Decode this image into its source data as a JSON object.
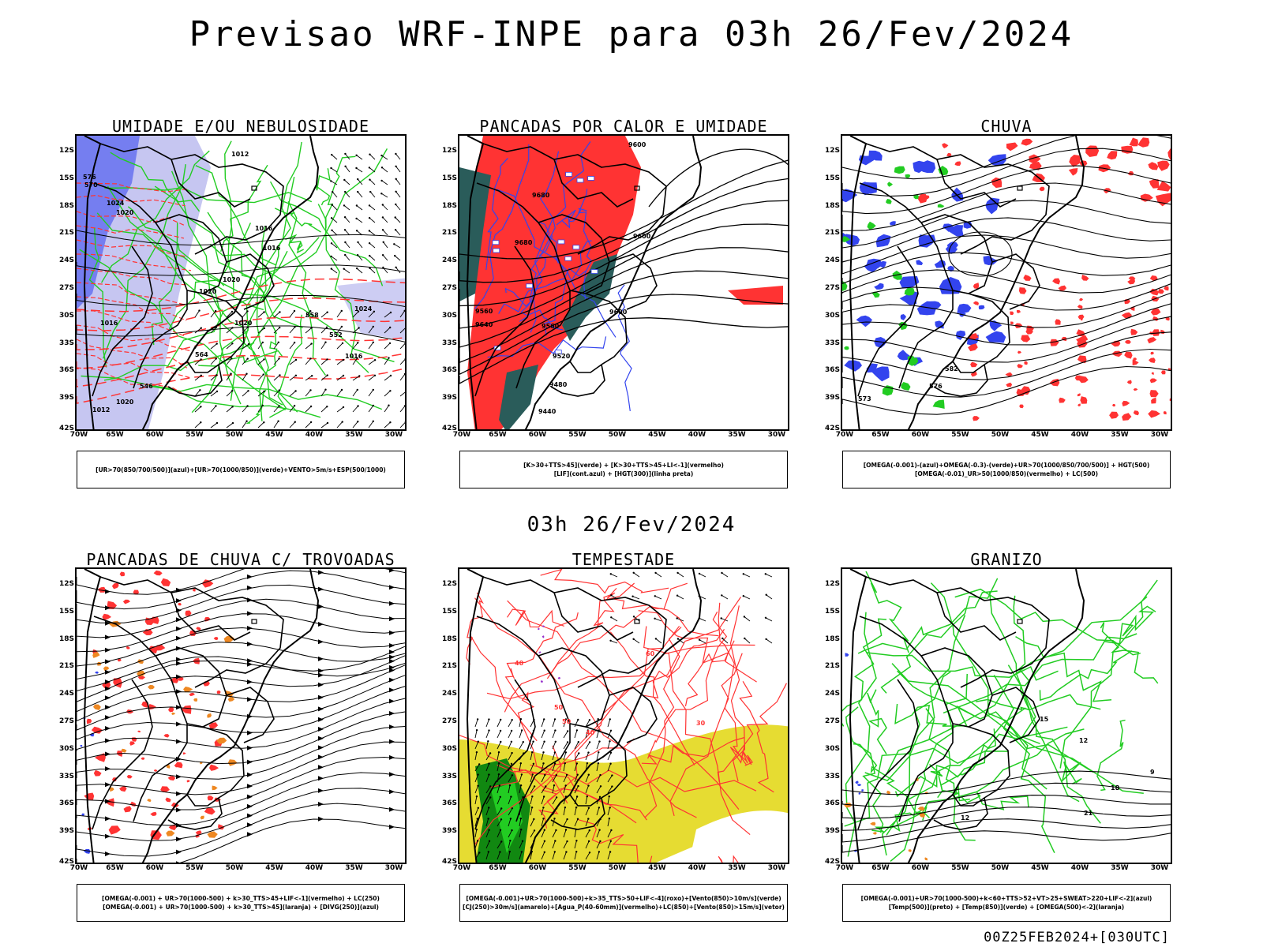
{
  "header": {
    "title": "Previsao WRF-INPE  para 03h 26/Fev/2024",
    "mid_title": "03h 26/Fev/2024",
    "footer": "00Z25FEB2024+[030UTC]"
  },
  "axes": {
    "lat_labels": [
      "12S",
      "15S",
      "18S",
      "21S",
      "24S",
      "27S",
      "30S",
      "33S",
      "36S",
      "39S",
      "42S"
    ],
    "lon_labels": [
      "70W",
      "65W",
      "60W",
      "55W",
      "50W",
      "45W",
      "40W",
      "35W",
      "30W"
    ]
  },
  "colors": {
    "green": "#22cc22",
    "red": "#ff3333",
    "blue": "#3344ee",
    "lavender": "#b8b8ee",
    "teal": "#2a5c5a",
    "yellow": "#e6dc32",
    "orange": "#ee8822",
    "purple": "#9933cc",
    "darkgreen": "#118811"
  },
  "panels": [
    {
      "id": "umidade",
      "title": "UMIDADE E/OU NEBULOSIDADE",
      "legend": [
        "[UR>70(850/700/500)](azul)+[UR>70(1000/850)](verde)+VENTO>5m/s+ESP(500/1000)"
      ],
      "labels": [
        "1012",
        "1024",
        "1020",
        "1016",
        "1020",
        "1016",
        "1020",
        "1024",
        "1016",
        "1020",
        "1016",
        "576",
        "570",
        "564",
        "558",
        "552",
        "546",
        "1020",
        "1012"
      ]
    },
    {
      "id": "pancadas-calor",
      "title": "PANCADAS POR CALOR E UMIDADE",
      "legend": [
        "[K>30+TTS>45](verde) + [K>30+TTS>45+LI<-1](vermelho)",
        "[LIF](cont.azul) + [HGT(300)](linha preta)"
      ],
      "labels": [
        "9600",
        "9680",
        "9680",
        "9600",
        "9640",
        "9560",
        "9520",
        "9480",
        "9440",
        "9600",
        "9560"
      ]
    },
    {
      "id": "chuva",
      "title": "CHUVA",
      "legend": [
        "[OMEGA(-0.001)-(azul)+OMEGA(-0.3)-(verde)+UR>70(1000/850/700/500)] + HGT(500)",
        "[OMEGA(-0.01)_UR>50(1000/850)(vermelho) + LC(500)"
      ],
      "labels": [
        "582",
        "576",
        "573"
      ]
    },
    {
      "id": "pancadas-trovoadas",
      "title": "PANCADAS DE CHUVA C/ TROVOADAS",
      "legend": [
        "[OMEGA(-0.001) + UR>70(1000-500) + k>30_TTS>45+LIF<-1](vermelho) + LC(250)",
        "[OMEGA(-0.001) + UR>70(1000-500) + k>30_TTS>45](laranja) + [DIVG(250)](azul)"
      ],
      "labels": []
    },
    {
      "id": "tempestade",
      "title": "TEMPESTADE",
      "legend": [
        "[OMEGA(-0.001)+UR>70(1000-500)+k>35_TTS>50+LIF<-4](roxo)+[Vento(850)>10m/s](verde)",
        "[CJ(250)>30m/s](amarelo)+[Agua_P(40-60mm)](vermelho)+LC(850)+[Vento(850)>15m/s](vetor)"
      ],
      "labels": [
        "40",
        "50",
        "60",
        "50",
        "40",
        "30"
      ]
    },
    {
      "id": "granizo",
      "title": "GRANIZO",
      "legend": [
        "[OMEGA(-0.001)+UR>70(1000-500)+k<60+TTS>52+VT>25+SWEAT>220+LIF<-2](azul)",
        "[Temp(500)](preto) + [Temp(850)](verde) + [OMEGA(500)<-2](laranja)"
      ],
      "labels": [
        "15",
        "12",
        "9",
        "18",
        "21",
        "12"
      ]
    }
  ]
}
